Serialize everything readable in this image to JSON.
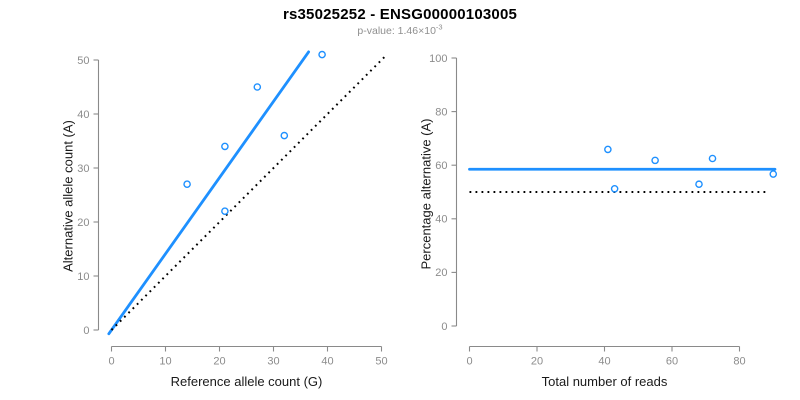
{
  "header": {
    "title": "rs35025252 - ENSG00000103005",
    "subtitle_prefix": "p-value: 1.46×10",
    "subtitle_exponent": "-3"
  },
  "colors": {
    "accent_blue": "#1E90FF",
    "dotted_black": "#000000",
    "axis_gray": "#8a8a8a",
    "tick_label_gray": "#8c8c8c",
    "label_black": "#1a1a1a",
    "subtitle_gray": "#8f8f8f"
  },
  "chart_data": [
    {
      "type": "scatter",
      "xlabel": "Reference allele count (G)",
      "ylabel": "Alternative allele count (A)",
      "xlim": [
        0,
        50
      ],
      "ylim": [
        0,
        51
      ],
      "x_ticks": [
        0,
        10,
        20,
        30,
        40,
        50
      ],
      "y_ticks": [
        0,
        10,
        20,
        30,
        40,
        50
      ],
      "grid": false,
      "legend": null,
      "points": [
        [
          14,
          27
        ],
        [
          21,
          22
        ],
        [
          21,
          34
        ],
        [
          27,
          45
        ],
        [
          32,
          36
        ],
        [
          39,
          51
        ]
      ],
      "lines": [
        {
          "name": "fit-line",
          "style": "solid",
          "color_key": "accent_blue",
          "from": [
            -0.5,
            -0.7
          ],
          "to": [
            36.5,
            51.5
          ]
        },
        {
          "name": "identity-line",
          "style": "dotted",
          "color_key": "dotted_black",
          "from": [
            0,
            0
          ],
          "to": [
            51,
            51
          ]
        }
      ]
    },
    {
      "type": "scatter",
      "xlabel": "Total number of reads",
      "ylabel": "Percentage alternative (A)",
      "xlim": [
        0,
        90
      ],
      "ylim": [
        0,
        100
      ],
      "x_ticks": [
        0,
        20,
        40,
        60,
        80
      ],
      "y_ticks": [
        0,
        20,
        40,
        60,
        80,
        100
      ],
      "grid": false,
      "legend": null,
      "points": [
        [
          41,
          65.9
        ],
        [
          43,
          51.2
        ],
        [
          55,
          61.8
        ],
        [
          68,
          52.9
        ],
        [
          72,
          62.5
        ],
        [
          90,
          56.7
        ]
      ],
      "lines": [
        {
          "name": "mean-percentage-line",
          "style": "solid",
          "color_key": "accent_blue",
          "from": [
            0,
            58.5
          ],
          "to": [
            90.5,
            58.5
          ]
        },
        {
          "name": "expected-50pct-line",
          "style": "dotted",
          "color_key": "dotted_black",
          "from": [
            0,
            50
          ],
          "to": [
            88.5,
            50
          ]
        }
      ]
    }
  ]
}
